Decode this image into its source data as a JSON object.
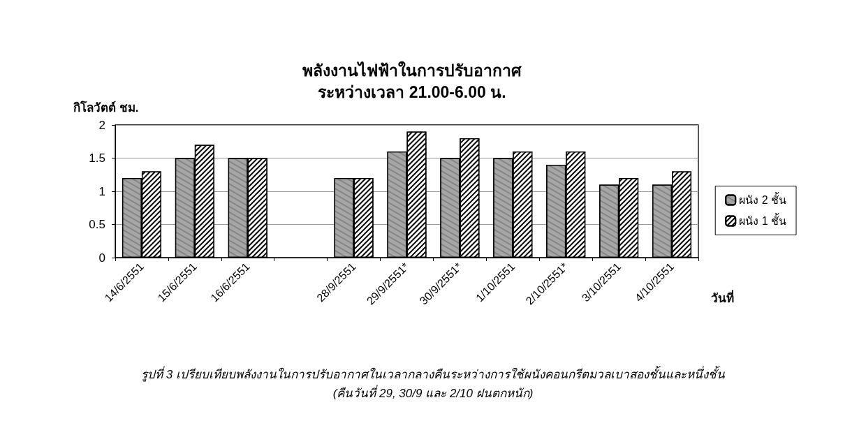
{
  "chart_data": {
    "type": "bar",
    "title": "พลังงานไฟฟ้าในการปรับอากาศ\nระหว่างเวลา 21.00-6.00 น.",
    "ylabel": "กิโลวัตต์ ชม.",
    "xlabel": "วันที่",
    "categories": [
      "14/6/2551",
      "15/6/2551",
      "16/6/2551",
      null,
      "28/9/2551",
      "29/9/2551*",
      "30/9/2551*",
      "1/10/2551",
      "2/10/2551*",
      "3/10/2551",
      "4/10/2551"
    ],
    "series": [
      {
        "name": "ผนัง 2 ชั้น",
        "color": "#a6a6a6",
        "values": [
          1.2,
          1.5,
          1.5,
          null,
          1.2,
          1.6,
          1.5,
          1.5,
          1.4,
          1.1,
          1.1
        ]
      },
      {
        "name": "ผนัง 1 ชั้น",
        "color": "#ffffff",
        "values": [
          1.3,
          1.7,
          1.5,
          null,
          1.2,
          1.9,
          1.8,
          1.6,
          1.6,
          1.2,
          1.3
        ]
      }
    ],
    "ylim": [
      0,
      2
    ],
    "yticks": [
      0,
      0.5,
      1,
      1.5,
      2
    ],
    "grid": "y",
    "legend": "right",
    "annotations": [
      "รูปที่ 3 เปรียบเทียบพลังงานในการปรับอากาศในเวลากลางคืนระหว่างการใช้ผนังคอนกรีตมวลเบาสองชั้นและหนึ่งชั้น",
      "(คืนวันที่ 29, 30/9 และ 2/10 ฝนตกหนัก)"
    ]
  }
}
